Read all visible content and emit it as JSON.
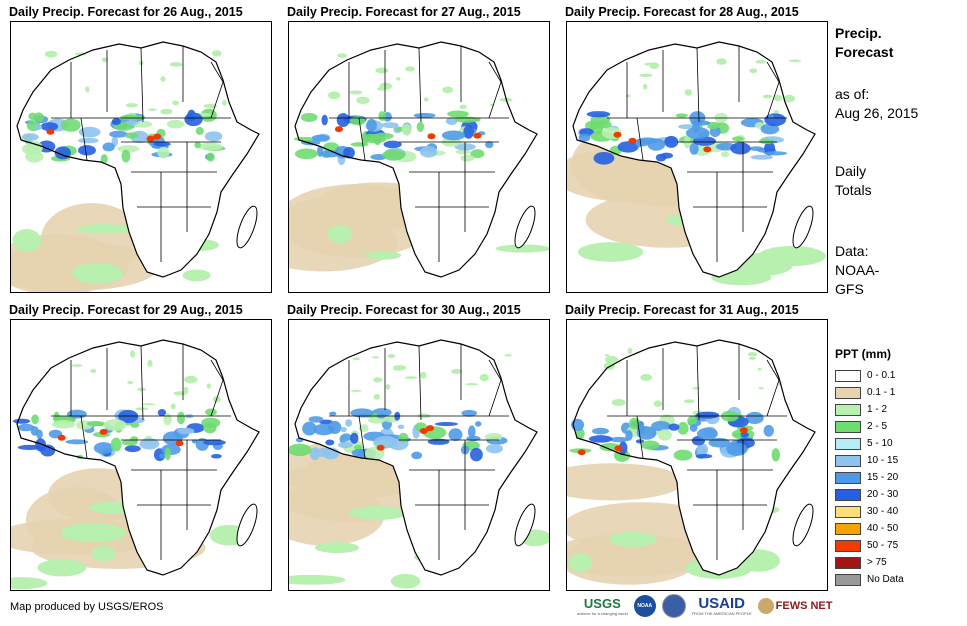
{
  "panels": [
    {
      "title": "Daily Precip. Forecast for 26 Aug., 2015"
    },
    {
      "title": "Daily Precip. Forecast for 27 Aug., 2015"
    },
    {
      "title": "Daily Precip. Forecast for 28 Aug., 2015"
    },
    {
      "title": "Daily Precip. Forecast for 29 Aug., 2015"
    },
    {
      "title": "Daily Precip. Forecast for 30 Aug., 2015"
    },
    {
      "title": "Daily Precip. Forecast for 31 Aug., 2015"
    }
  ],
  "sidebar": {
    "title_line1": "Precip.",
    "title_line2": "Forecast",
    "asof_line1": "as of:",
    "asof_line2": "Aug 26, 2015",
    "totals_line1": "Daily",
    "totals_line2": "Totals",
    "data_line1": "Data:",
    "data_line2": "NOAA-",
    "data_line3": "GFS"
  },
  "legend": {
    "title": "PPT (mm)",
    "items": [
      {
        "label": "0 - 0.1",
        "color": "#ffffff"
      },
      {
        "label": "0.1 - 1",
        "color": "#e6d3b0"
      },
      {
        "label": "1 - 2",
        "color": "#b8f0b0"
      },
      {
        "label": "2 - 5",
        "color": "#6fdc6f"
      },
      {
        "label": "5 - 10",
        "color": "#b5ecf5"
      },
      {
        "label": "10 - 15",
        "color": "#8ec3ef"
      },
      {
        "label": "15 - 20",
        "color": "#4f9ae8"
      },
      {
        "label": "20 - 30",
        "color": "#2560e0"
      },
      {
        "label": "30 - 40",
        "color": "#fbe07a"
      },
      {
        "label": "40 - 50",
        "color": "#f5a300"
      },
      {
        "label": "50 - 75",
        "color": "#f23a00"
      },
      {
        "label": "> 75",
        "color": "#a31515"
      },
      {
        "label": "No Data",
        "color": "#999999"
      }
    ]
  },
  "credit": "Map produced by USGS/EROS",
  "logos": {
    "usgs": "USGS",
    "usgs_tagline": "science for a changing world",
    "noaa": "NOAA",
    "usaid": "USAID",
    "usaid_tagline": "FROM THE AMERICAN PEOPLE",
    "fewsnet": "FEWS NET"
  }
}
